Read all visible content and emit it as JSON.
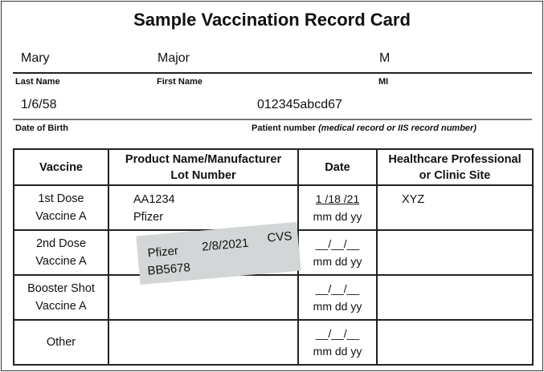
{
  "title": "Sample Vaccination Record Card",
  "patient": {
    "last_name": "Mary",
    "first_name": "Major",
    "mi": "M",
    "last_name_label": "Last Name",
    "first_name_label": "First Name",
    "mi_label": "MI",
    "dob": "1/6/58",
    "patient_number": "012345abcd67",
    "dob_label": "Date of Birth",
    "patient_number_label": "Patient number",
    "patient_number_note": "(medical record or IIS record number)"
  },
  "table": {
    "headers": {
      "vaccine": "Vaccine",
      "product_line1": "Product Name/Manufacturer",
      "product_line2": "Lot Number",
      "date": "Date",
      "site_line1": "Healthcare Professional",
      "site_line2": "or Clinic Site"
    },
    "rows": [
      {
        "vaccine1": "1st Dose",
        "vaccine2": "Vaccine A",
        "product1": "AA1234",
        "product2": "Pfizer",
        "date": "1 /18 /21",
        "date_sub": "mm dd  yy",
        "site": "XYZ"
      },
      {
        "vaccine1": "2nd Dose",
        "vaccine2": "Vaccine A",
        "product1": "",
        "product2": "",
        "date": "__/__/__",
        "date_sub": "mm dd  yy",
        "site": ""
      },
      {
        "vaccine1": "Booster Shot",
        "vaccine2": "Vaccine A",
        "product1": "",
        "product2": "",
        "date": "__/__/__",
        "date_sub": "mm dd  yy",
        "site": ""
      },
      {
        "vaccine1": "Other",
        "vaccine2": "",
        "product1": "",
        "product2": "",
        "date": "__/__/__",
        "date_sub": "mm dd  yy",
        "site": ""
      }
    ]
  },
  "sticker": {
    "manufacturer": "Pfizer",
    "date": "2/8/2021",
    "site": "CVS",
    "lot": "BB5678"
  }
}
